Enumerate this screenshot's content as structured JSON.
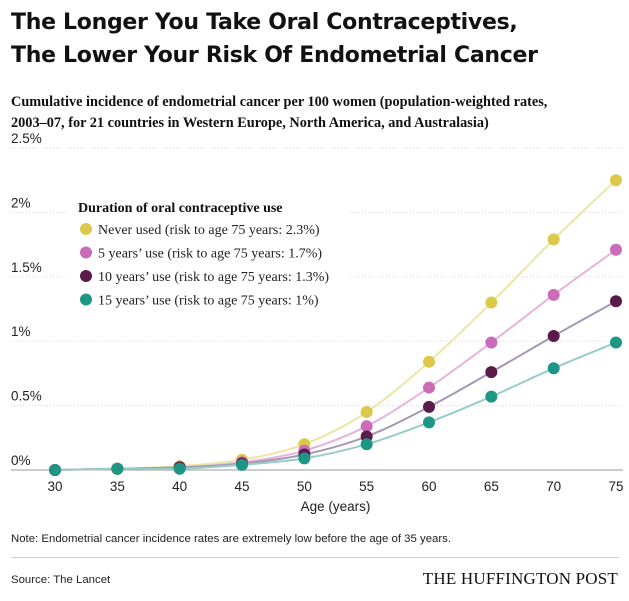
{
  "header": {
    "title_lines": [
      "The Longer You Take Oral Contraceptives,",
      "The Lower Your Risk Of Endometrial Cancer"
    ],
    "subtitle_lines": [
      "Cumulative incidence of endometrial cancer per 100 women (population-weighted rates,",
      "2003–07, for 21 countries in Western Europe, North America, and Australasia)"
    ]
  },
  "chart_data": {
    "type": "line",
    "x": [
      30,
      35,
      40,
      45,
      50,
      55,
      60,
      65,
      70,
      75
    ],
    "xlabel": "Age (years)",
    "ylabel": "",
    "xlim": [
      30,
      75
    ],
    "ylim": [
      0,
      2.5
    ],
    "x_ticks": [
      30,
      35,
      40,
      45,
      50,
      55,
      60,
      65,
      70,
      75
    ],
    "x_tick_labels": [
      "30",
      "35",
      "40",
      "45",
      "50",
      "55",
      "60",
      "65",
      "70",
      "75"
    ],
    "y_ticks": [
      0,
      0.5,
      1,
      1.5,
      2,
      2.5
    ],
    "y_tick_labels": [
      "0%",
      "0.5%",
      "1%",
      "1.5%",
      "2%",
      "2.5%"
    ],
    "grid": "horizontal",
    "legend_title": "Duration of oral contraceptive use",
    "legend_position": "top-left",
    "series": [
      {
        "name": "Never used (risk to age 75 years: 2.3%)",
        "color": "#dcc94b",
        "line_color": "#ebe6a6",
        "values": [
          0,
          0.01,
          0.03,
          0.08,
          0.2,
          0.45,
          0.84,
          1.3,
          1.79,
          2.25
        ]
      },
      {
        "name": "5 years’ use (risk to age 75 years: 1.7%)",
        "color": "#cc6bb8",
        "line_color": "#e4b4dc",
        "values": [
          0,
          0.01,
          0.02,
          0.06,
          0.15,
          0.34,
          0.64,
          0.99,
          1.36,
          1.71
        ]
      },
      {
        "name": "10 years’ use (risk to age 75 years: 1.3%)",
        "color": "#5b1a49",
        "line_color": "#a597b4",
        "values": [
          0,
          0.01,
          0.02,
          0.05,
          0.12,
          0.26,
          0.49,
          0.76,
          1.04,
          1.31
        ]
      },
      {
        "name": "15 years’ use (risk to age 75 years: 1%)",
        "color": "#1d9686",
        "line_color": "#96cdc8",
        "values": [
          0,
          0.01,
          0.01,
          0.04,
          0.09,
          0.2,
          0.37,
          0.57,
          0.79,
          0.99
        ]
      }
    ]
  },
  "footer": {
    "note": "Note: Endometrial cancer incidence rates are extremely low before the age of 35 years.",
    "source": "Source: The Lancet",
    "brand": "THE HUFFINGTON POST"
  }
}
